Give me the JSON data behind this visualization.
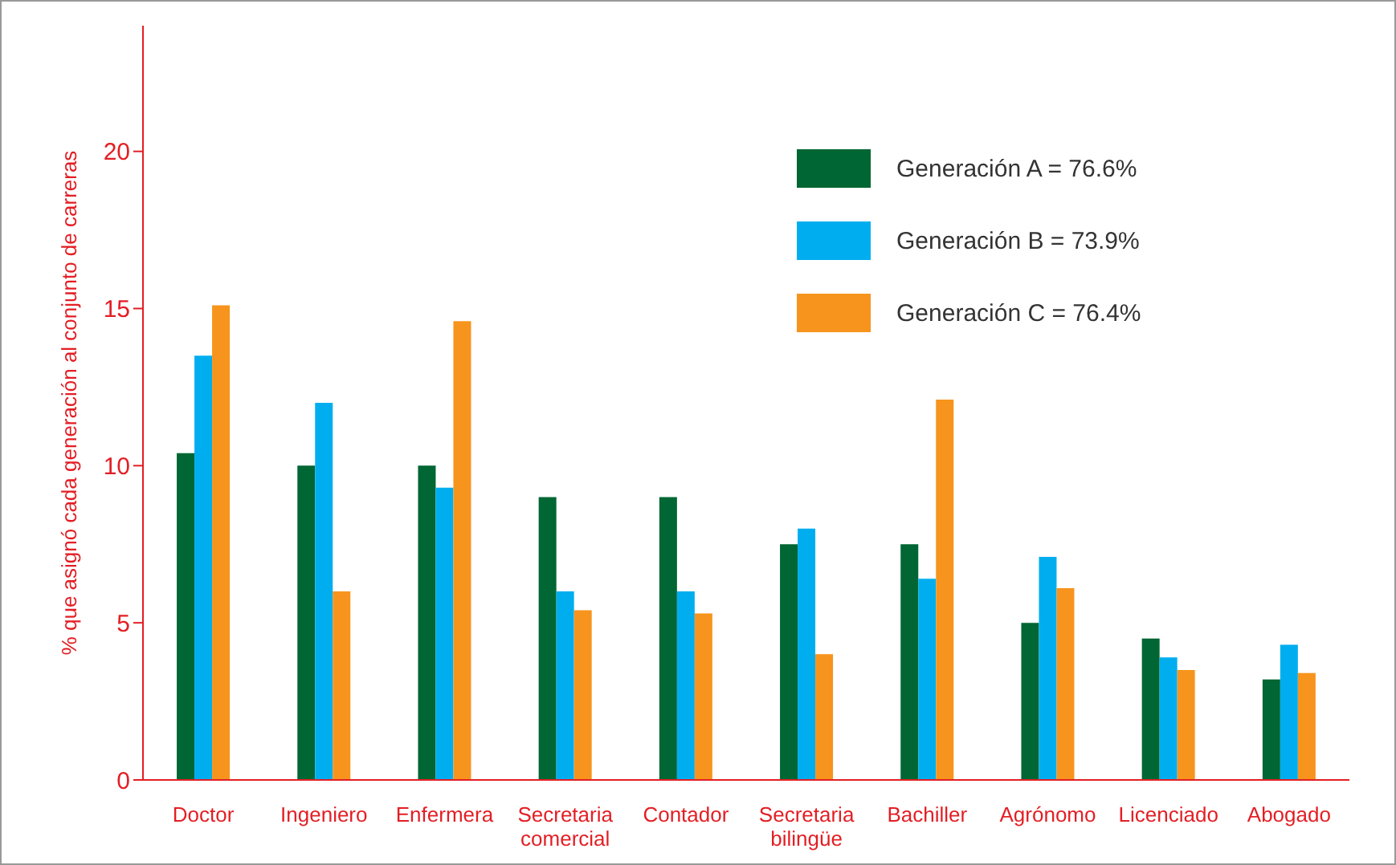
{
  "chart_data": {
    "type": "bar",
    "ylabel": "% que asignó cada generación al conjunto de carreras",
    "categories": [
      "Doctor",
      "Ingeniero",
      "Enfermera",
      "Secretaria comercial",
      "Contador",
      "Secretaria bilingüe",
      "Bachiller",
      "Agrónomo",
      "Licenciado",
      "Abogado"
    ],
    "series": [
      {
        "name": "Generación A = 76.6%",
        "color": "#006633",
        "values": [
          10.4,
          10.0,
          10.0,
          9.0,
          9.0,
          7.5,
          7.5,
          5.0,
          4.5,
          3.2
        ]
      },
      {
        "name": "Generación B = 73.9%",
        "color": "#00aeef",
        "values": [
          13.5,
          12.0,
          9.3,
          6.0,
          6.0,
          8.0,
          6.4,
          7.1,
          3.9,
          4.3
        ]
      },
      {
        "name": "Generación C = 76.4%",
        "color": "#f7941d",
        "values": [
          15.1,
          6.0,
          14.6,
          5.4,
          5.3,
          4.0,
          12.1,
          6.1,
          3.5,
          3.4
        ]
      }
    ],
    "ylim": [
      0,
      24
    ],
    "yticks": [
      0,
      5,
      10,
      15,
      20
    ],
    "grid": false,
    "legend": "top right"
  }
}
